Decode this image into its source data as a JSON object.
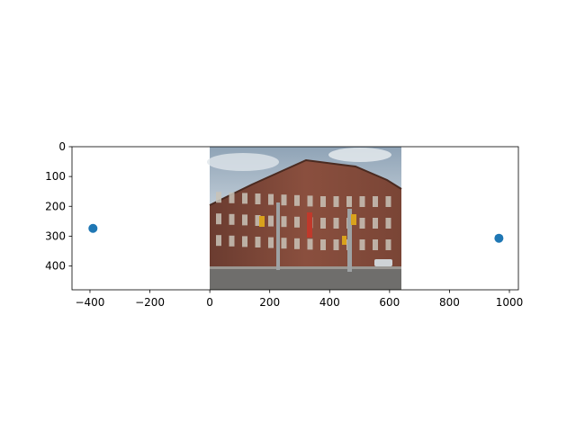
{
  "chart_data": {
    "type": "scatter",
    "title": "",
    "xlabel": "",
    "ylabel": "",
    "xlim": [
      -460,
      1030
    ],
    "ylim": [
      480,
      0
    ],
    "y_inverted": true,
    "grid": false,
    "legend": "none",
    "x_ticks": [
      -400,
      -200,
      0,
      200,
      400,
      600,
      800,
      1000
    ],
    "x_tick_labels": [
      "−400",
      "−200",
      "0",
      "200",
      "400",
      "600",
      "800",
      "1000"
    ],
    "y_ticks": [
      0,
      100,
      200,
      300,
      400
    ],
    "y_tick_labels": [
      "0",
      "100",
      "200",
      "300",
      "400"
    ],
    "image": {
      "extent_x": [
        0,
        640
      ],
      "extent_y": [
        0,
        480
      ],
      "content": "photo"
    },
    "series": [
      {
        "color": "#1f77b4",
        "x": [
          -390,
          965
        ],
        "y": [
          274,
          307
        ]
      }
    ]
  }
}
